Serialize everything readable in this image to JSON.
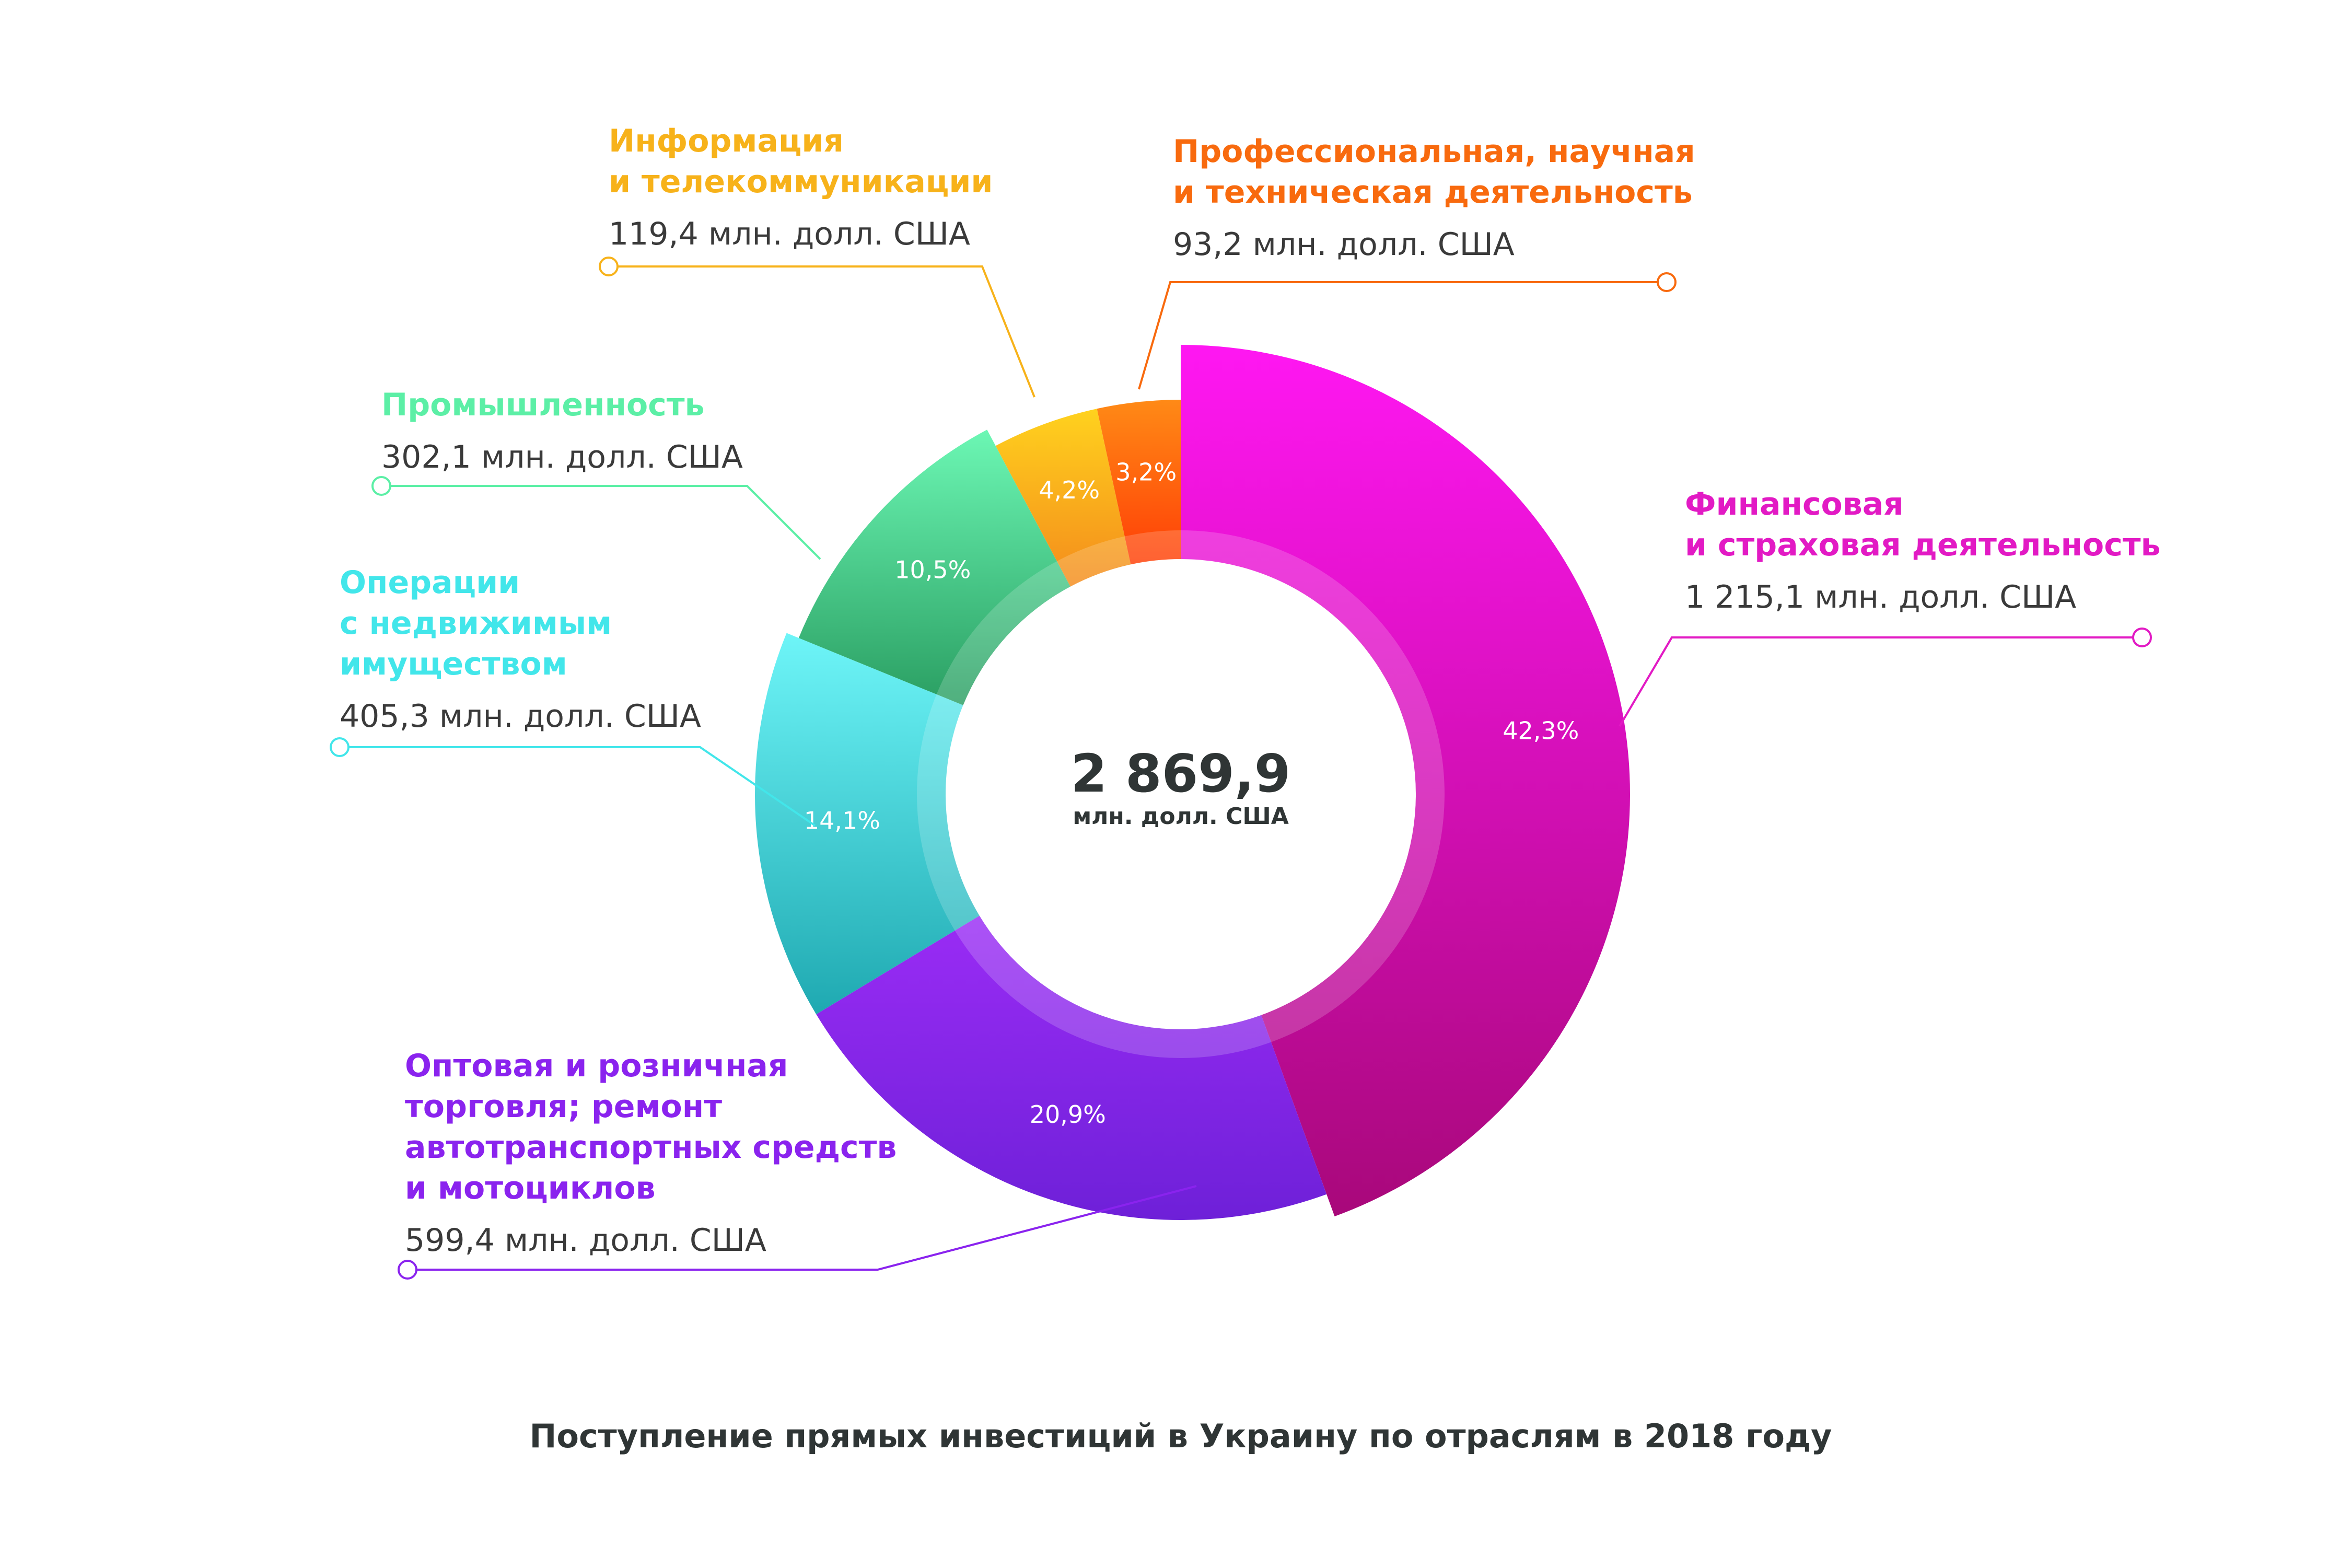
{
  "chart_data": {
    "type": "pie",
    "title": "Поступление прямых инвестиций в Украину по отраслям в 2018 году",
    "center_value": "2 869,9",
    "center_unit": "млн. долл. США",
    "value_unit": "млн. долл. США",
    "categories": [
      {
        "name": "Финансовая и страховая деятельность",
        "name_lines": [
          "Финансовая",
          "и страховая деятельность"
        ],
        "value": 1215.1,
        "value_label": "1 215,1 млн. долл. США",
        "percent": 42.3,
        "percent_label": "42,3%",
        "colors": [
          "#ff17f2",
          "#a8087a"
        ]
      },
      {
        "name": "Оптовая и розничная торговля; ремонт автотранспортных средств и мотоциклов",
        "name_lines": [
          "Оптовая и розничная",
          "торговля; ремонт",
          "автотранспортных средств",
          "и мотоциклов"
        ],
        "value": 599.4,
        "value_label": "599,4 млн. долл. США",
        "percent": 20.9,
        "percent_label": "20,9%",
        "colors": [
          "#9a2cf5",
          "#6e20d8"
        ]
      },
      {
        "name": "Операции с недвижимым имуществом",
        "name_lines": [
          "Операции",
          "с недвижимым",
          "имуществом"
        ],
        "value": 405.3,
        "value_label": "405,3 млн. долл. США",
        "percent": 14.1,
        "percent_label": "14,1%",
        "colors": [
          "#6ef5f8",
          "#1fa9b1"
        ]
      },
      {
        "name": "Промышленность",
        "name_lines": [
          "Промышленность"
        ],
        "value": 302.1,
        "value_label": "302,1 млн. долл. США",
        "percent": 10.5,
        "percent_label": "10,5%",
        "colors": [
          "#6cf7b4",
          "#2a9e62"
        ]
      },
      {
        "name": "Информация и телекоммуникации",
        "name_lines": [
          "Информация",
          "и телекоммуникации"
        ],
        "value": 119.4,
        "value_label": "119,4 млн. долл. США",
        "percent": 4.2,
        "percent_label": "4,2%",
        "colors": [
          "#ffd21e",
          "#f48b1b"
        ]
      },
      {
        "name": "Профессиональная, научная и техническая деятельность",
        "name_lines": [
          "Профессиональная, научная",
          "и техническая деятельность"
        ],
        "value": 93.2,
        "value_label": "93,2 млн. долл. США",
        "percent": 3.2,
        "percent_label": "3,2%",
        "colors": [
          "#ff8a16",
          "#ff3e06"
        ]
      }
    ],
    "label_colors": [
      "#e21ac4",
      "#8a23ee",
      "#42e6ea",
      "#5cefa6",
      "#f7b21a",
      "#f86a0e"
    ],
    "legend": "callouts"
  }
}
